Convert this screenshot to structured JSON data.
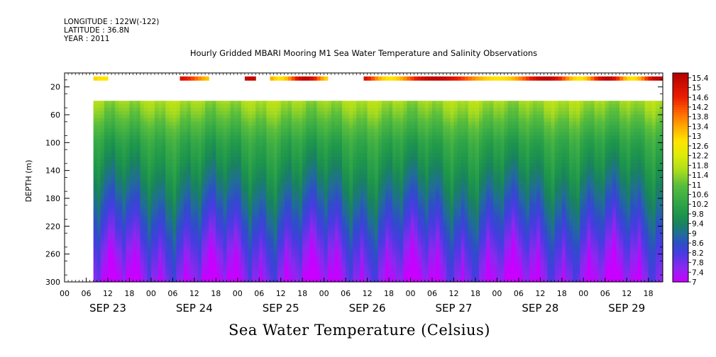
{
  "header": {
    "longitude": "LONGITUDE : 122W(-122)",
    "latitude": "LATITUDE : 36.8N",
    "year": "YEAR : 2011"
  },
  "chart_data": {
    "type": "heatmap",
    "title": "Hourly Gridded MBARI Mooring M1 Sea Water Temperature and Salinity Observations",
    "ylabel": "DEPTH (m)",
    "xlabel": "Sea Water Temperature (Celsius)",
    "ylim": [
      300,
      0
    ],
    "y_ticks": [
      20,
      60,
      100,
      140,
      180,
      220,
      260,
      300
    ],
    "x_hours": [
      "00",
      "06",
      "12",
      "18",
      "00",
      "06",
      "12",
      "18",
      "00",
      "06",
      "12",
      "18",
      "00",
      "06",
      "12",
      "18",
      "00",
      "06",
      "12",
      "18",
      "00",
      "06",
      "12",
      "18",
      "00",
      "06",
      "12",
      "18"
    ],
    "x_days": [
      "SEP 23",
      "SEP 24",
      "SEP 25",
      "SEP 26",
      "SEP 27",
      "SEP 28",
      "SEP 29"
    ],
    "x_range_hours": [
      0,
      166
    ],
    "colorbar": {
      "levels": [
        "15.4",
        "15",
        "14.6",
        "14.2",
        "13.8",
        "13.4",
        "13",
        "12.6",
        "12.2",
        "11.8",
        "11.4",
        "11",
        "10.6",
        "10.2",
        "9.8",
        "9.4",
        "9",
        "8.6",
        "8.2",
        "7.8",
        "7.4",
        "7"
      ],
      "range": [
        7,
        15.6
      ],
      "colors": {
        "warm": "#cc0000",
        "mid": "#ffff00",
        "green": "#2ea84a",
        "cool": "#2e49d8",
        "cold": "#c800ff"
      }
    },
    "surface_layer": {
      "depth_range": [
        5,
        11
      ],
      "segments_hours": [
        [
          8,
          12
        ],
        [
          32,
          40
        ],
        [
          50,
          53
        ],
        [
          57,
          73
        ],
        [
          83,
          166
        ]
      ],
      "temperature_range": [
        12.8,
        15.4
      ]
    },
    "profile": {
      "depth_range": [
        40,
        300
      ],
      "start_hour": 8,
      "depths": [
        40,
        60,
        100,
        140,
        180,
        220,
        260,
        300
      ],
      "mean_temperature": [
        11.6,
        11.2,
        10.2,
        9.6,
        9.0,
        8.4,
        7.8,
        7.3
      ]
    }
  }
}
